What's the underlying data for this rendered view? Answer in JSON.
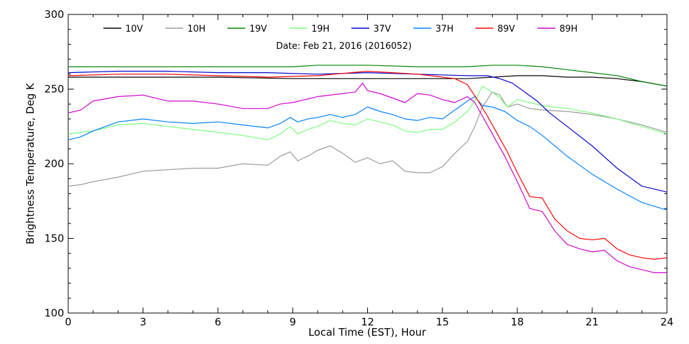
{
  "chart_data": {
    "type": "line",
    "subtitle": "Date: Feb 21, 2016 (2016052)",
    "xlabel": "Local Time (EST), Hour",
    "ylabel": "Brightness Temperature, Deg K",
    "xlim": [
      0,
      24
    ],
    "ylim": [
      100,
      300
    ],
    "x_ticks": [
      0,
      3,
      6,
      9,
      12,
      15,
      18,
      21,
      24
    ],
    "y_ticks": [
      100,
      150,
      200,
      250,
      300
    ],
    "grid": false,
    "legend_position": "top",
    "series": [
      {
        "name": "10V",
        "color": "#000000",
        "points": [
          [
            0,
            258
          ],
          [
            3,
            258
          ],
          [
            6,
            258
          ],
          [
            9,
            257
          ],
          [
            12,
            257
          ],
          [
            15,
            257
          ],
          [
            16,
            257
          ],
          [
            17,
            258
          ],
          [
            18,
            259
          ],
          [
            19,
            259
          ],
          [
            20,
            258
          ],
          [
            21,
            258
          ],
          [
            22,
            257
          ],
          [
            23,
            255
          ],
          [
            24,
            252
          ]
        ]
      },
      {
        "name": "10H",
        "color": "#999999",
        "points": [
          [
            0,
            185
          ],
          [
            0.5,
            186
          ],
          [
            1,
            188
          ],
          [
            2,
            191
          ],
          [
            3,
            195
          ],
          [
            4,
            196
          ],
          [
            5,
            197
          ],
          [
            6,
            197
          ],
          [
            7,
            200
          ],
          [
            8,
            199
          ],
          [
            8.5,
            205
          ],
          [
            8.9,
            208
          ],
          [
            9.2,
            202
          ],
          [
            9.6,
            205
          ],
          [
            10,
            209
          ],
          [
            10.5,
            212
          ],
          [
            11,
            207
          ],
          [
            11.5,
            201
          ],
          [
            12,
            204
          ],
          [
            12.5,
            200
          ],
          [
            13,
            202
          ],
          [
            13.5,
            195
          ],
          [
            14,
            194
          ],
          [
            14.5,
            194
          ],
          [
            15,
            198
          ],
          [
            15.5,
            207
          ],
          [
            16,
            215
          ],
          [
            16.3,
            225
          ],
          [
            16.6,
            238
          ],
          [
            17,
            248
          ],
          [
            17.3,
            246
          ],
          [
            17.6,
            238
          ],
          [
            18,
            240
          ],
          [
            18.5,
            237
          ],
          [
            19,
            236
          ],
          [
            20,
            235
          ],
          [
            21,
            233
          ],
          [
            22,
            230
          ],
          [
            23,
            226
          ],
          [
            24,
            221
          ]
        ]
      },
      {
        "name": "19V",
        "color": "#008000",
        "points": [
          [
            0,
            265
          ],
          [
            3,
            265
          ],
          [
            6,
            265
          ],
          [
            9,
            265
          ],
          [
            10,
            266
          ],
          [
            12,
            266
          ],
          [
            14,
            265
          ],
          [
            16,
            265
          ],
          [
            17,
            266
          ],
          [
            18,
            266
          ],
          [
            19,
            265
          ],
          [
            20,
            263
          ],
          [
            21,
            261
          ],
          [
            22,
            259
          ],
          [
            23,
            255
          ],
          [
            24,
            252
          ]
        ]
      },
      {
        "name": "19H",
        "color": "#7cfc7c",
        "points": [
          [
            0,
            220
          ],
          [
            1,
            222
          ],
          [
            2,
            226
          ],
          [
            3,
            227
          ],
          [
            4,
            225
          ],
          [
            5,
            223
          ],
          [
            6,
            221
          ],
          [
            7,
            219
          ],
          [
            8,
            216
          ],
          [
            8.5,
            220
          ],
          [
            8.9,
            225
          ],
          [
            9.2,
            220
          ],
          [
            9.6,
            223
          ],
          [
            10,
            225
          ],
          [
            10.5,
            229
          ],
          [
            11,
            227
          ],
          [
            11.5,
            226
          ],
          [
            12,
            230
          ],
          [
            12.5,
            228
          ],
          [
            13,
            226
          ],
          [
            13.5,
            222
          ],
          [
            14,
            221
          ],
          [
            14.5,
            223
          ],
          [
            15,
            223
          ],
          [
            15.5,
            228
          ],
          [
            16,
            235
          ],
          [
            16.3,
            242
          ],
          [
            16.6,
            252
          ],
          [
            17,
            248
          ],
          [
            17.3,
            244
          ],
          [
            17.6,
            238
          ],
          [
            18,
            243
          ],
          [
            18.5,
            241
          ],
          [
            19,
            239
          ],
          [
            20,
            237
          ],
          [
            21,
            234
          ],
          [
            22,
            230
          ],
          [
            23,
            225
          ],
          [
            24,
            220
          ]
        ]
      },
      {
        "name": "37V",
        "color": "#0000cc",
        "points": [
          [
            0,
            261
          ],
          [
            2,
            262
          ],
          [
            4,
            262
          ],
          [
            6,
            261
          ],
          [
            8,
            261
          ],
          [
            10,
            260
          ],
          [
            12,
            261
          ],
          [
            14,
            260
          ],
          [
            16,
            259
          ],
          [
            16.8,
            259
          ],
          [
            17.3,
            257
          ],
          [
            17.8,
            254
          ],
          [
            18.3,
            248
          ],
          [
            18.8,
            242
          ],
          [
            19.3,
            234
          ],
          [
            20,
            225
          ],
          [
            21,
            212
          ],
          [
            22,
            197
          ],
          [
            23,
            185
          ],
          [
            24,
            181
          ]
        ]
      },
      {
        "name": "37H",
        "color": "#0080ff",
        "points": [
          [
            0,
            216
          ],
          [
            0.5,
            218
          ],
          [
            1,
            222
          ],
          [
            2,
            228
          ],
          [
            3,
            230
          ],
          [
            4,
            228
          ],
          [
            5,
            227
          ],
          [
            6,
            228
          ],
          [
            7,
            226
          ],
          [
            8,
            224
          ],
          [
            8.5,
            227
          ],
          [
            8.9,
            231
          ],
          [
            9.2,
            228
          ],
          [
            9.6,
            230
          ],
          [
            10,
            231
          ],
          [
            10.5,
            233
          ],
          [
            11,
            231
          ],
          [
            11.5,
            233
          ],
          [
            12,
            238
          ],
          [
            12.5,
            235
          ],
          [
            13,
            233
          ],
          [
            13.5,
            230
          ],
          [
            14,
            229
          ],
          [
            14.5,
            231
          ],
          [
            15,
            230
          ],
          [
            15.5,
            236
          ],
          [
            16,
            242
          ],
          [
            16.3,
            245
          ],
          [
            16.6,
            239
          ],
          [
            17,
            238
          ],
          [
            17.5,
            235
          ],
          [
            18,
            229
          ],
          [
            18.5,
            225
          ],
          [
            19,
            219
          ],
          [
            20,
            205
          ],
          [
            21,
            193
          ],
          [
            22,
            183
          ],
          [
            23,
            174
          ],
          [
            24,
            169
          ]
        ]
      },
      {
        "name": "89V",
        "color": "#ff0000",
        "points": [
          [
            0,
            259
          ],
          [
            2,
            260
          ],
          [
            4,
            260
          ],
          [
            6,
            259
          ],
          [
            8,
            258
          ],
          [
            10,
            259
          ],
          [
            12,
            262
          ],
          [
            14,
            260
          ],
          [
            15.5,
            257
          ],
          [
            16,
            253
          ],
          [
            16.4,
            243
          ],
          [
            16.8,
            232
          ],
          [
            17.2,
            220
          ],
          [
            17.6,
            208
          ],
          [
            18,
            194
          ],
          [
            18.5,
            178
          ],
          [
            19,
            177
          ],
          [
            19.5,
            163
          ],
          [
            20,
            155
          ],
          [
            20.5,
            150
          ],
          [
            21,
            149
          ],
          [
            21.5,
            150
          ],
          [
            22,
            143
          ],
          [
            22.5,
            139
          ],
          [
            23,
            137
          ],
          [
            23.5,
            136
          ],
          [
            24,
            137
          ]
        ]
      },
      {
        "name": "89H",
        "color": "#cc00cc",
        "points": [
          [
            0,
            234
          ],
          [
            0.5,
            236
          ],
          [
            1,
            242
          ],
          [
            2,
            245
          ],
          [
            3,
            246
          ],
          [
            4,
            242
          ],
          [
            5,
            242
          ],
          [
            6,
            240
          ],
          [
            7,
            237
          ],
          [
            8,
            237
          ],
          [
            8.5,
            240
          ],
          [
            9,
            241
          ],
          [
            10,
            245
          ],
          [
            11,
            247
          ],
          [
            11.5,
            248
          ],
          [
            11.8,
            254
          ],
          [
            12,
            249
          ],
          [
            12.5,
            247
          ],
          [
            13,
            244
          ],
          [
            13.5,
            241
          ],
          [
            14,
            247
          ],
          [
            14.5,
            246
          ],
          [
            15,
            243
          ],
          [
            15.5,
            241
          ],
          [
            16,
            245
          ],
          [
            16.3,
            241
          ],
          [
            16.6,
            232
          ],
          [
            17,
            220
          ],
          [
            17.5,
            205
          ],
          [
            18,
            188
          ],
          [
            18.5,
            170
          ],
          [
            19,
            168
          ],
          [
            19.5,
            155
          ],
          [
            20,
            146
          ],
          [
            20.5,
            143
          ],
          [
            21,
            141
          ],
          [
            21.5,
            142
          ],
          [
            22,
            135
          ],
          [
            22.5,
            131
          ],
          [
            23,
            129
          ],
          [
            23.5,
            127
          ],
          [
            24,
            127
          ]
        ]
      }
    ]
  }
}
